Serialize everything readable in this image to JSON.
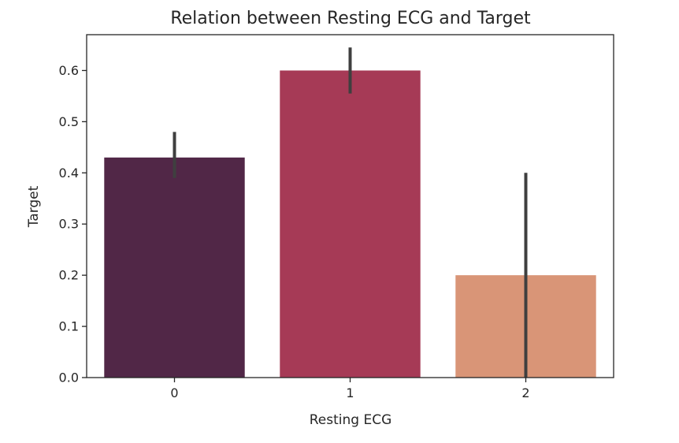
{
  "chart_data": {
    "type": "bar",
    "title": "Relation between Resting ECG and Target",
    "xlabel": "Resting ECG",
    "ylabel": "Target",
    "categories": [
      "0",
      "1",
      "2"
    ],
    "values": [
      0.43,
      0.6,
      0.2
    ],
    "error_low": [
      0.39,
      0.555,
      0.0
    ],
    "error_high": [
      0.48,
      0.645,
      0.4
    ],
    "ylim": [
      0,
      0.67
    ],
    "yticks": [
      0.0,
      0.1,
      0.2,
      0.3,
      0.4,
      0.5,
      0.6
    ],
    "ytick_labels": [
      "0.0",
      "0.1",
      "0.2",
      "0.3",
      "0.4",
      "0.5",
      "0.6"
    ],
    "grid": false,
    "colors": [
      "#512747",
      "#a63a56",
      "#d99577"
    ],
    "error_color": "#3f3f3f"
  }
}
